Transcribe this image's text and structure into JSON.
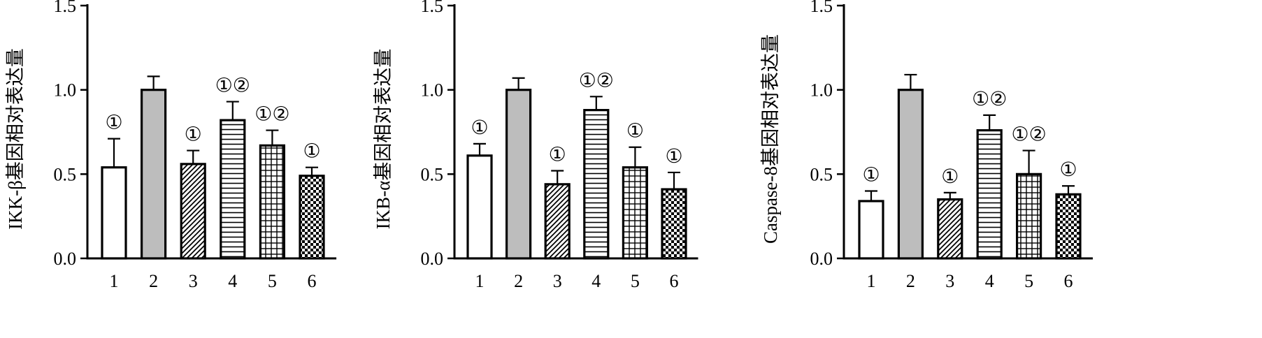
{
  "chart_data": [
    {
      "type": "bar",
      "ylabel": "IKK-β基因相对表达量",
      "ylim": [
        0,
        1.5
      ],
      "yticks": [
        "0.0",
        "0.5",
        "1.0",
        "1.5"
      ],
      "categories": [
        "1",
        "2",
        "3",
        "4",
        "5",
        "6"
      ],
      "values": [
        0.54,
        1.0,
        0.56,
        0.82,
        0.67,
        0.49
      ],
      "errors": [
        0.17,
        0.08,
        0.08,
        0.11,
        0.09,
        0.05
      ],
      "annotations": [
        "①",
        "",
        "①",
        "①②",
        "①②",
        "①"
      ]
    },
    {
      "type": "bar",
      "ylabel": "IKB-α基因相对表达量",
      "ylim": [
        0,
        1.5
      ],
      "yticks": [
        "0.0",
        "0.5",
        "1.0",
        "1.5"
      ],
      "categories": [
        "1",
        "2",
        "3",
        "4",
        "5",
        "6"
      ],
      "values": [
        0.61,
        1.0,
        0.44,
        0.88,
        0.54,
        0.41
      ],
      "errors": [
        0.07,
        0.07,
        0.08,
        0.08,
        0.12,
        0.1
      ],
      "annotations": [
        "①",
        "",
        "①",
        "①②",
        "①",
        "①"
      ]
    },
    {
      "type": "bar",
      "ylabel": "Caspase-8基因相对表达量",
      "ylim": [
        0,
        1.5
      ],
      "yticks": [
        "0.0",
        "0.5",
        "1.0",
        "1.5"
      ],
      "categories": [
        "1",
        "2",
        "3",
        "4",
        "5",
        "6"
      ],
      "values": [
        0.34,
        1.0,
        0.35,
        0.76,
        0.5,
        0.38
      ],
      "errors": [
        0.06,
        0.09,
        0.04,
        0.09,
        0.14,
        0.05
      ],
      "annotations": [
        "①",
        "",
        "①",
        "①②",
        "①②",
        "①"
      ]
    }
  ],
  "bar_patterns": [
    "open",
    "solid-gray",
    "diagonal-hatch",
    "horizontal-lines",
    "grid",
    "checkerboard"
  ],
  "colors": {
    "ink": "#000000",
    "gray_fill": "#bdbdbd",
    "background": "#ffffff"
  }
}
